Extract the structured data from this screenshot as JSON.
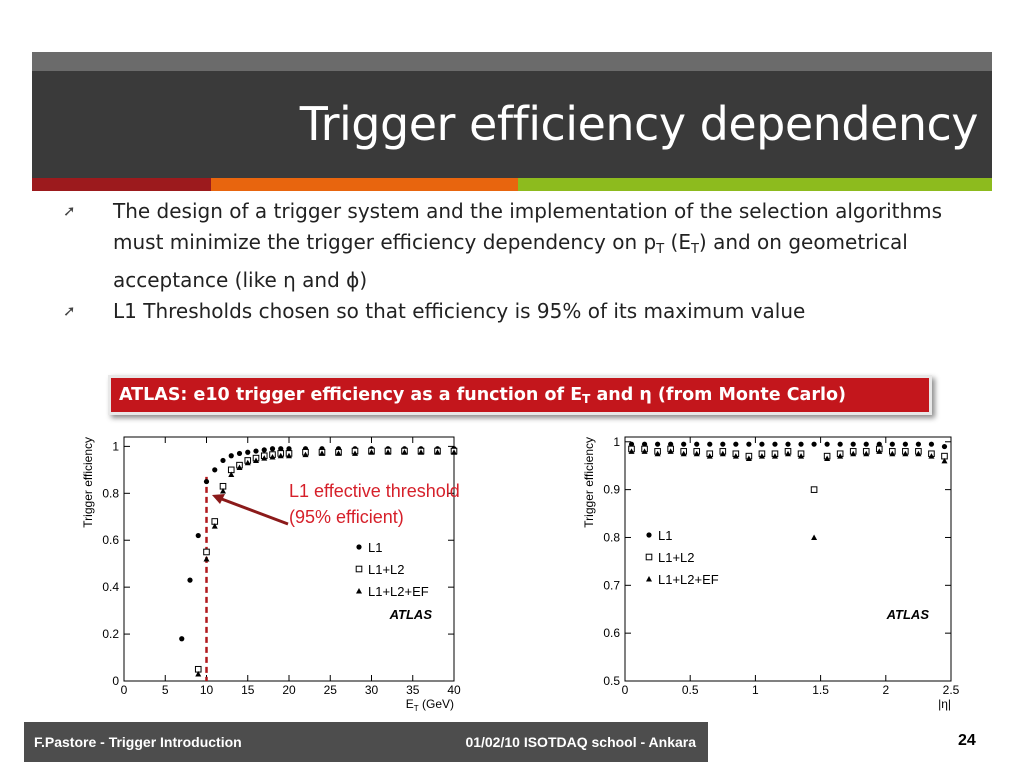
{
  "slide": {
    "title": "Trigger efficiency dependency",
    "stripe_colors": [
      "#9c1a1d",
      "#e8650e",
      "#8dbb1e"
    ]
  },
  "bullets": {
    "item1": {
      "part1": "The design of a trigger system and the implementation of the selection algorithms must minimize the trigger efficiency dependency on p",
      "sub1": "T",
      "part2": " (E",
      "sub2": "T",
      "part3": ") and on geometrical acceptance (like η and ϕ)"
    },
    "item2": {
      "text": "L1 Thresholds chosen so that efficiency is 95% of its maximum value"
    },
    "marker_icon": "arrow-bullet-icon"
  },
  "caption": {
    "part1": "ATLAS: e10 trigger efficiency as a function of E",
    "sub": "T",
    "part2": " and η (from Monte Carlo)"
  },
  "annotation": {
    "line1": "L1 effective threshold",
    "line2": "(95% efficient)"
  },
  "chart_data": [
    {
      "type": "scatter",
      "xlabel": "E_T (GeV)",
      "ylabel": "Trigger efficiency",
      "xlim": [
        0,
        40
      ],
      "ylim": [
        0,
        1.04
      ],
      "xticks": [
        "0",
        "5",
        "10",
        "15",
        "20",
        "25",
        "30",
        "35",
        "40"
      ],
      "yticks": [
        "0",
        "0.2",
        "0.4",
        "0.6",
        "0.8",
        "1"
      ],
      "watermark": "ATLAS",
      "threshold_x": 10,
      "legend": [
        "L1",
        "L1+L2",
        "L1+L2+EF"
      ],
      "legend_position": "lower-right",
      "series": [
        {
          "name": "L1",
          "marker": "filled-circle",
          "x": [
            7,
            8,
            9,
            10,
            11,
            12,
            13,
            14,
            15,
            16,
            17,
            18,
            19,
            20,
            22,
            24,
            26,
            28,
            30,
            32,
            34,
            36,
            38,
            40
          ],
          "y": [
            0.18,
            0.43,
            0.62,
            0.85,
            0.9,
            0.94,
            0.96,
            0.97,
            0.975,
            0.98,
            0.985,
            0.99,
            0.99,
            0.99,
            0.99,
            0.99,
            0.99,
            0.99,
            0.99,
            0.99,
            0.99,
            0.99,
            0.99,
            0.99
          ]
        },
        {
          "name": "L1+L2",
          "marker": "open-square",
          "x": [
            9,
            10,
            11,
            12,
            13,
            14,
            15,
            16,
            17,
            18,
            19,
            20,
            22,
            24,
            26,
            28,
            30,
            32,
            34,
            36,
            38,
            40
          ],
          "y": [
            0.05,
            0.55,
            0.68,
            0.83,
            0.9,
            0.92,
            0.94,
            0.95,
            0.96,
            0.965,
            0.97,
            0.97,
            0.975,
            0.975,
            0.975,
            0.98,
            0.98,
            0.98,
            0.98,
            0.98,
            0.98,
            0.98
          ]
        },
        {
          "name": "L1+L2+EF",
          "marker": "filled-triangle",
          "x": [
            9,
            10,
            11,
            12,
            13,
            14,
            15,
            16,
            17,
            18,
            19,
            20,
            22,
            24,
            26,
            28,
            30,
            32,
            34,
            36,
            38,
            40
          ],
          "y": [
            0.03,
            0.52,
            0.66,
            0.81,
            0.88,
            0.91,
            0.93,
            0.94,
            0.95,
            0.955,
            0.96,
            0.96,
            0.965,
            0.97,
            0.97,
            0.97,
            0.975,
            0.975,
            0.975,
            0.975,
            0.975,
            0.975
          ]
        }
      ]
    },
    {
      "type": "scatter",
      "xlabel": "|η|",
      "ylabel": "Trigger efficiency",
      "xlim": [
        0,
        2.5
      ],
      "ylim": [
        0.5,
        1.01
      ],
      "xticks": [
        "0",
        "0.5",
        "1",
        "1.5",
        "2",
        "2.5"
      ],
      "yticks": [
        "0.5",
        "0.6",
        "0.7",
        "0.8",
        "0.9",
        "1"
      ],
      "watermark": "ATLAS",
      "legend": [
        "L1",
        "L1+L2",
        "L1+L2+EF"
      ],
      "legend_position": "left",
      "series": [
        {
          "name": "L1",
          "marker": "filled-circle",
          "x": [
            0.05,
            0.15,
            0.25,
            0.35,
            0.45,
            0.55,
            0.65,
            0.75,
            0.85,
            0.95,
            1.05,
            1.15,
            1.25,
            1.35,
            1.45,
            1.55,
            1.65,
            1.75,
            1.85,
            1.95,
            2.05,
            2.15,
            2.25,
            2.35,
            2.45
          ],
          "y": [
            0.995,
            0.995,
            0.995,
            0.995,
            0.995,
            0.995,
            0.995,
            0.995,
            0.995,
            0.995,
            0.995,
            0.995,
            0.995,
            0.995,
            0.995,
            0.995,
            0.995,
            0.995,
            0.995,
            0.995,
            0.995,
            0.995,
            0.995,
            0.995,
            0.99
          ]
        },
        {
          "name": "L1+L2",
          "marker": "open-square",
          "x": [
            0.05,
            0.15,
            0.25,
            0.35,
            0.45,
            0.55,
            0.65,
            0.75,
            0.85,
            0.95,
            1.05,
            1.15,
            1.25,
            1.35,
            1.45,
            1.55,
            1.65,
            1.75,
            1.85,
            1.95,
            2.05,
            2.15,
            2.25,
            2.35,
            2.45
          ],
          "y": [
            0.985,
            0.985,
            0.98,
            0.985,
            0.98,
            0.98,
            0.975,
            0.98,
            0.975,
            0.97,
            0.975,
            0.975,
            0.98,
            0.975,
            0.9,
            0.97,
            0.975,
            0.98,
            0.98,
            0.985,
            0.98,
            0.98,
            0.98,
            0.975,
            0.97
          ]
        },
        {
          "name": "L1+L2+EF",
          "marker": "filled-triangle",
          "x": [
            0.05,
            0.15,
            0.25,
            0.35,
            0.45,
            0.55,
            0.65,
            0.75,
            0.85,
            0.95,
            1.05,
            1.15,
            1.25,
            1.35,
            1.45,
            1.55,
            1.65,
            1.75,
            1.85,
            1.95,
            2.05,
            2.15,
            2.25,
            2.35,
            2.45
          ],
          "y": [
            0.98,
            0.98,
            0.975,
            0.98,
            0.975,
            0.975,
            0.97,
            0.975,
            0.97,
            0.965,
            0.97,
            0.97,
            0.975,
            0.97,
            0.8,
            0.965,
            0.97,
            0.975,
            0.975,
            0.98,
            0.975,
            0.975,
            0.975,
            0.97,
            0.96
          ]
        }
      ]
    }
  ],
  "footer": {
    "left": "F.Pastore - Trigger Introduction",
    "right": "01/02/10 ISOTDAQ school - Ankara",
    "page": "24"
  }
}
